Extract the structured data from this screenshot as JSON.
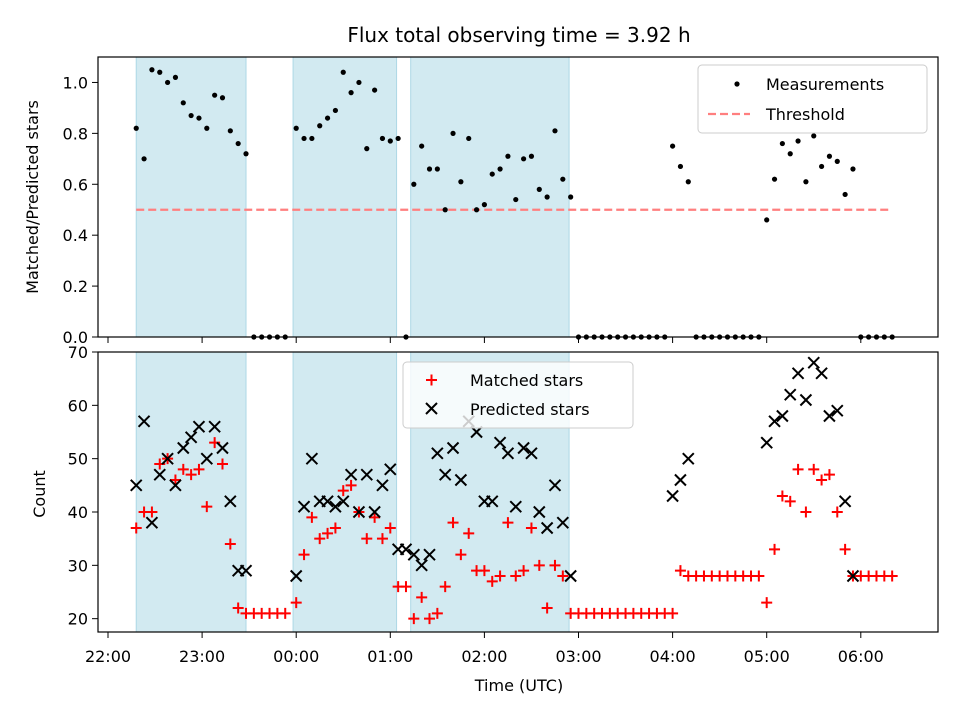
{
  "chart_data": [
    {
      "type": "scatter",
      "title": "Flux total observing time = 3.92 h",
      "xlabel": "",
      "ylabel": "Matched/Predicted stars",
      "ylim": [
        0,
        1.1
      ],
      "y_ticks": [
        "0.0",
        "0.2",
        "0.4",
        "0.6",
        "0.8",
        "1.0"
      ],
      "y_tick_values": [
        0,
        0.2,
        0.4,
        0.6,
        0.8,
        1.0
      ],
      "legend_position": "top-right",
      "legend": [
        {
          "label": "Measurements",
          "marker": "dot",
          "color": "#000000"
        },
        {
          "label": "Threshold",
          "marker": "dashed-line",
          "color": "#ff7f7f"
        }
      ],
      "threshold": {
        "y": 0.5,
        "x_start": "22:18",
        "x_end": "06:20"
      },
      "series": [
        {
          "name": "Measurements",
          "x": [
            "22:18",
            "22:23",
            "22:28",
            "22:33",
            "22:38",
            "22:43",
            "22:48",
            "22:53",
            "22:58",
            "23:03",
            "23:08",
            "23:13",
            "23:18",
            "23:23",
            "23:28",
            "23:33",
            "23:38",
            "23:43",
            "23:48",
            "23:53",
            "00:00",
            "00:05",
            "00:10",
            "00:15",
            "00:20",
            "00:25",
            "00:30",
            "00:35",
            "00:40",
            "00:45",
            "00:50",
            "00:55",
            "01:00",
            "01:05",
            "01:10",
            "01:15",
            "01:20",
            "01:25",
            "01:30",
            "01:35",
            "01:40",
            "01:45",
            "01:50",
            "01:55",
            "02:00",
            "02:05",
            "02:10",
            "02:15",
            "02:20",
            "02:25",
            "02:30",
            "02:35",
            "02:40",
            "02:45",
            "02:50",
            "02:55",
            "03:00",
            "03:05",
            "03:10",
            "03:15",
            "03:20",
            "03:25",
            "03:30",
            "03:35",
            "03:40",
            "03:45",
            "03:50",
            "03:55",
            "04:00",
            "04:05",
            "04:10",
            "04:15",
            "04:20",
            "04:25",
            "04:30",
            "04:35",
            "04:40",
            "04:45",
            "04:50",
            "04:55",
            "05:00",
            "05:05",
            "05:10",
            "05:15",
            "05:20",
            "05:25",
            "05:30",
            "05:35",
            "05:40",
            "05:45",
            "05:50",
            "05:55",
            "06:00",
            "06:05",
            "06:10",
            "06:15",
            "06:20"
          ],
          "y": [
            0.82,
            0.7,
            1.05,
            1.04,
            1.0,
            1.02,
            0.92,
            0.87,
            0.86,
            0.82,
            0.95,
            0.94,
            0.81,
            0.76,
            0.72,
            0.0,
            0.0,
            0.0,
            0.0,
            0.0,
            0.82,
            0.78,
            0.78,
            0.83,
            0.86,
            0.89,
            1.04,
            0.96,
            1.0,
            0.74,
            0.97,
            0.78,
            0.77,
            0.78,
            0.0,
            0.6,
            0.75,
            0.66,
            0.66,
            0.5,
            0.8,
            0.61,
            0.78,
            0.5,
            0.52,
            0.64,
            0.66,
            0.71,
            0.54,
            0.7,
            0.71,
            0.58,
            0.55,
            0.81,
            0.62,
            0.55,
            0.0,
            0.0,
            0.0,
            0.0,
            0.0,
            0.0,
            0.0,
            0.0,
            0.0,
            0.0,
            0.0,
            0.0,
            0.75,
            0.67,
            0.61,
            0.0,
            0.0,
            0.0,
            0.0,
            0.0,
            0.0,
            0.0,
            0.0,
            0.0,
            0.46,
            0.62,
            0.76,
            0.72,
            0.77,
            0.61,
            0.79,
            0.67,
            0.71,
            0.69,
            0.56,
            0.66,
            0.0,
            0.0,
            0.0,
            0.0,
            0.0
          ]
        }
      ]
    },
    {
      "type": "scatter",
      "title": "",
      "xlabel": "Time (UTC)",
      "ylabel": "Count",
      "ylim": [
        17.5,
        70
      ],
      "y_ticks": [
        "20",
        "30",
        "40",
        "50",
        "60",
        "70"
      ],
      "y_tick_values": [
        20,
        30,
        40,
        50,
        60,
        70
      ],
      "x_ticks": [
        "22:00",
        "23:00",
        "00:00",
        "01:00",
        "02:00",
        "03:00",
        "04:00",
        "05:00",
        "06:00"
      ],
      "legend_position": "top-center",
      "legend": [
        {
          "label": "Matched stars",
          "marker": "plus",
          "color": "#ff0000"
        },
        {
          "label": "Predicted stars",
          "marker": "x",
          "color": "#000000"
        }
      ],
      "series": [
        {
          "name": "Matched stars",
          "x": [
            "22:18",
            "22:23",
            "22:28",
            "22:33",
            "22:38",
            "22:43",
            "22:48",
            "22:53",
            "22:58",
            "23:03",
            "23:08",
            "23:13",
            "23:18",
            "23:23",
            "23:28",
            "23:33",
            "23:38",
            "23:43",
            "23:48",
            "23:53",
            "00:00",
            "00:05",
            "00:10",
            "00:15",
            "00:20",
            "00:25",
            "00:30",
            "00:35",
            "00:40",
            "00:45",
            "00:50",
            "00:55",
            "01:00",
            "01:05",
            "01:10",
            "01:15",
            "01:20",
            "01:25",
            "01:30",
            "01:35",
            "01:40",
            "01:45",
            "01:50",
            "01:55",
            "02:00",
            "02:05",
            "02:10",
            "02:15",
            "02:20",
            "02:25",
            "02:30",
            "02:35",
            "02:40",
            "02:45",
            "02:50",
            "02:55",
            "03:00",
            "03:05",
            "03:10",
            "03:15",
            "03:20",
            "03:25",
            "03:30",
            "03:35",
            "03:40",
            "03:45",
            "03:50",
            "03:55",
            "04:00",
            "04:05",
            "04:10",
            "04:15",
            "04:20",
            "04:25",
            "04:30",
            "04:35",
            "04:40",
            "04:45",
            "04:50",
            "04:55",
            "05:00",
            "05:05",
            "05:10",
            "05:15",
            "05:20",
            "05:25",
            "05:30",
            "05:35",
            "05:40",
            "05:45",
            "05:50",
            "05:55",
            "06:00",
            "06:05",
            "06:10",
            "06:15",
            "06:20"
          ],
          "y": [
            37,
            40,
            40,
            49,
            50,
            46,
            48,
            47,
            48,
            41,
            53,
            49,
            34,
            22,
            21,
            21,
            21,
            21,
            21,
            21,
            23,
            32,
            39,
            35,
            36,
            37,
            44,
            45,
            40,
            35,
            39,
            35,
            37,
            26,
            26,
            20,
            24,
            20,
            21,
            26,
            38,
            32,
            36,
            29,
            29,
            27,
            28,
            38,
            28,
            29,
            37,
            30,
            22,
            30,
            28,
            21,
            21,
            21,
            21,
            21,
            21,
            21,
            21,
            21,
            21,
            21,
            21,
            21,
            21,
            29,
            28,
            28,
            28,
            28,
            28,
            28,
            28,
            28,
            28,
            28,
            23,
            33,
            43,
            42,
            48,
            40,
            48,
            46,
            47,
            40,
            33,
            28,
            28,
            28,
            28,
            28,
            28
          ]
        },
        {
          "name": "Predicted stars",
          "x": [
            "22:18",
            "22:23",
            "22:28",
            "22:33",
            "22:38",
            "22:43",
            "22:48",
            "22:53",
            "22:58",
            "23:03",
            "23:08",
            "23:13",
            "23:18",
            "23:23",
            "23:28",
            "00:00",
            "00:05",
            "00:10",
            "00:15",
            "00:20",
            "00:25",
            "00:30",
            "00:35",
            "00:40",
            "00:45",
            "00:50",
            "00:55",
            "01:00",
            "01:05",
            "01:10",
            "01:15",
            "01:20",
            "01:25",
            "01:30",
            "01:35",
            "01:40",
            "01:45",
            "01:50",
            "01:55",
            "02:00",
            "02:05",
            "02:10",
            "02:15",
            "02:20",
            "02:25",
            "02:30",
            "02:35",
            "02:40",
            "02:45",
            "02:50",
            "02:55",
            "04:00",
            "04:05",
            "04:10",
            "05:00",
            "05:05",
            "05:10",
            "05:15",
            "05:20",
            "05:25",
            "05:30",
            "05:35",
            "05:40",
            "05:45",
            "05:50",
            "05:55"
          ],
          "y": [
            45,
            57,
            38,
            47,
            50,
            45,
            52,
            54,
            56,
            50,
            56,
            52,
            42,
            29,
            29,
            28,
            41,
            50,
            42,
            42,
            41,
            42,
            47,
            40,
            47,
            40,
            45,
            48,
            33,
            33,
            32,
            30,
            32,
            51,
            47,
            52,
            46,
            57,
            55,
            42,
            42,
            53,
            51,
            41,
            52,
            51,
            40,
            37,
            45,
            38,
            28,
            43,
            46,
            50,
            53,
            57,
            58,
            62,
            66,
            61,
            68,
            66,
            58,
            59,
            42,
            28
          ]
        }
      ]
    }
  ],
  "shaded_intervals": [
    {
      "start": "22:18",
      "end": "23:28"
    },
    {
      "start": "23:58",
      "end": "01:04"
    },
    {
      "start": "01:13",
      "end": "02:54"
    }
  ],
  "colors": {
    "shade": "#add8e6",
    "threshold": "#ff7f7f",
    "matched": "#ff0000",
    "predicted": "#000000",
    "measurement": "#000000"
  }
}
